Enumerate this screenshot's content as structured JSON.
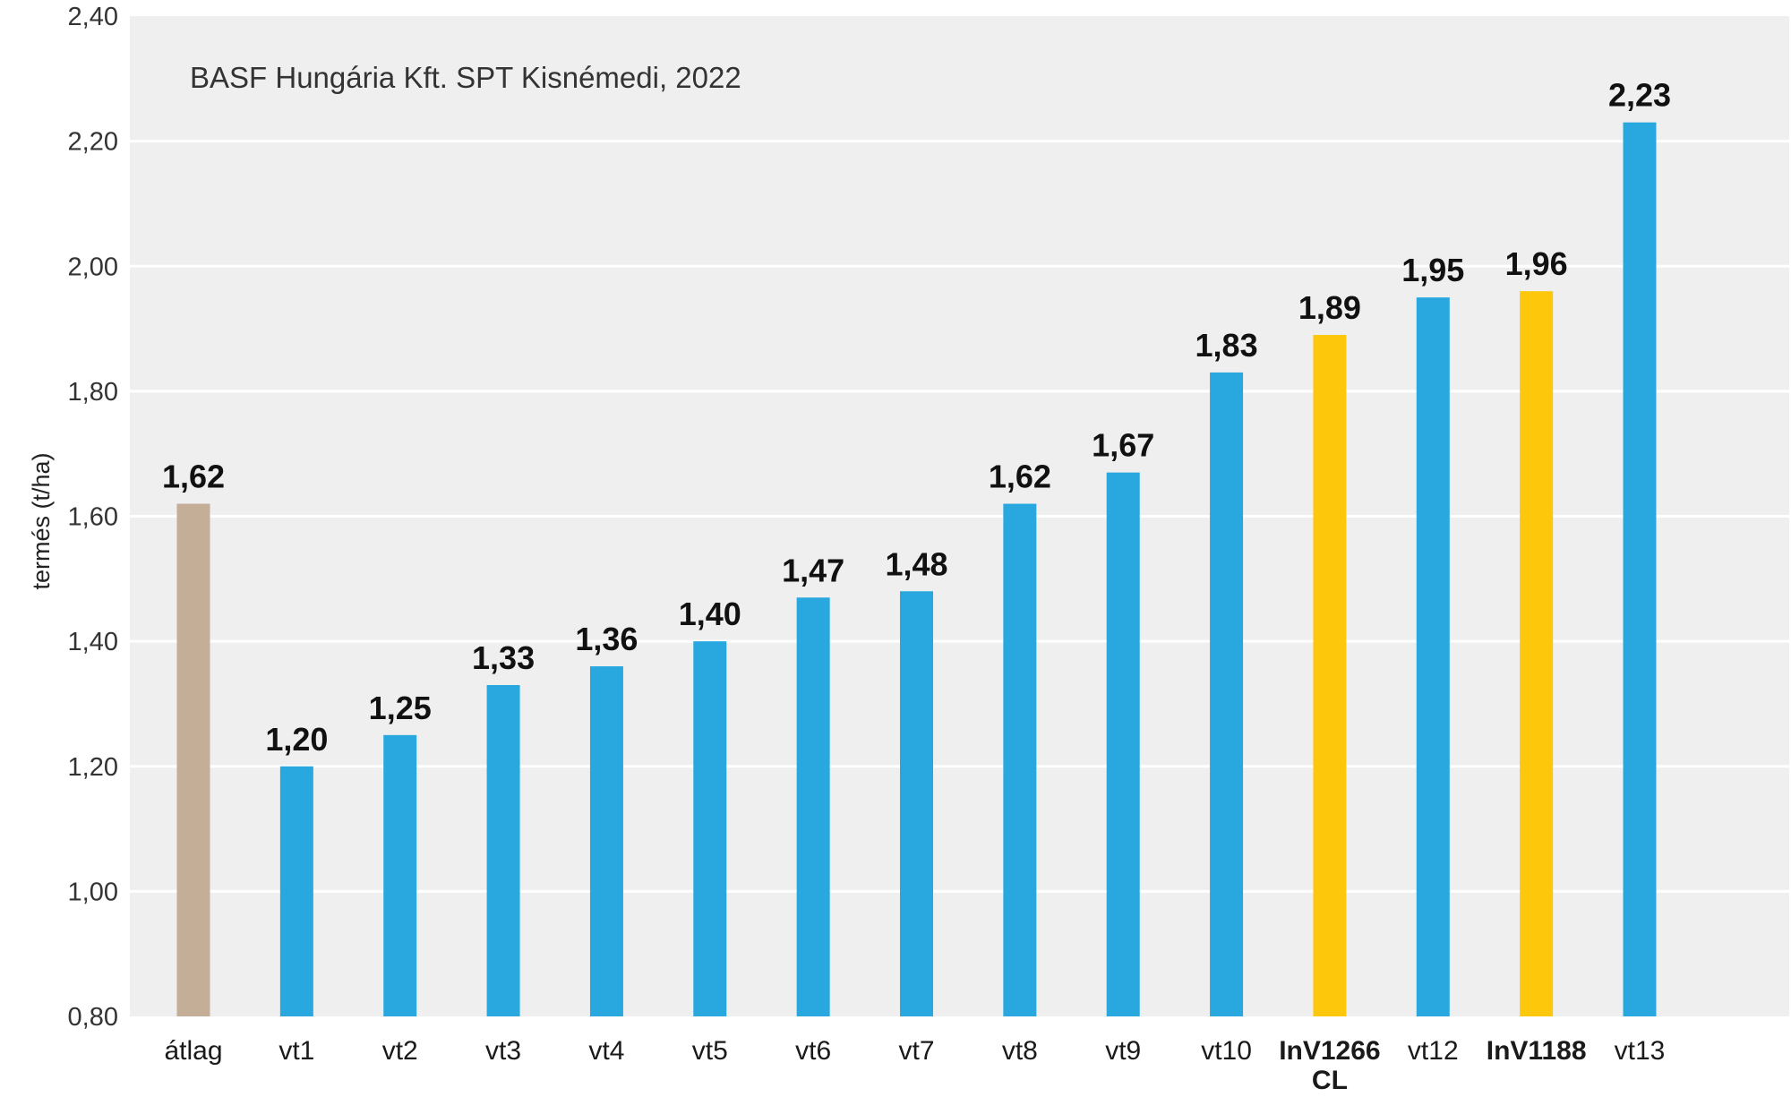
{
  "chart_data": {
    "type": "bar",
    "title": "",
    "subtitle": "BASF Hungária Kft. SPT Kisnémedi, 2022",
    "xlabel": "",
    "ylabel": "termés (t/ha)",
    "ylim": [
      0.8,
      2.4
    ],
    "yticks": [
      "0,80",
      "1,00",
      "1,20",
      "1,40",
      "1,60",
      "1,80",
      "2,00",
      "2,20",
      "2,40"
    ],
    "grid": true,
    "categories": [
      {
        "label": "átlag",
        "line2": "",
        "bold": false
      },
      {
        "label": "vt1",
        "line2": "",
        "bold": false
      },
      {
        "label": "vt2",
        "line2": "",
        "bold": false
      },
      {
        "label": "vt3",
        "line2": "",
        "bold": false
      },
      {
        "label": "vt4",
        "line2": "",
        "bold": false
      },
      {
        "label": "vt5",
        "line2": "",
        "bold": false
      },
      {
        "label": "vt6",
        "line2": "",
        "bold": false
      },
      {
        "label": "vt7",
        "line2": "",
        "bold": false
      },
      {
        "label": "vt8",
        "line2": "",
        "bold": false
      },
      {
        "label": "vt9",
        "line2": "",
        "bold": false
      },
      {
        "label": "vt10",
        "line2": "",
        "bold": false
      },
      {
        "label": "InV1266",
        "line2": "CL",
        "bold": true
      },
      {
        "label": "vt12",
        "line2": "",
        "bold": false
      },
      {
        "label": "InV1188",
        "line2": "",
        "bold": true
      },
      {
        "label": "vt13",
        "line2": "",
        "bold": false
      }
    ],
    "values": [
      1.62,
      1.2,
      1.25,
      1.33,
      1.36,
      1.4,
      1.47,
      1.48,
      1.62,
      1.67,
      1.83,
      1.89,
      1.95,
      1.96,
      2.23
    ],
    "value_labels": [
      "1,62",
      "1,20",
      "1,25",
      "1,33",
      "1,36",
      "1,40",
      "1,47",
      "1,48",
      "1,62",
      "1,67",
      "1,83",
      "1,89",
      "1,95",
      "1,96",
      "2,23"
    ],
    "bar_colors": [
      "#c5ae97",
      "#29a8e0",
      "#29a8e0",
      "#29a8e0",
      "#29a8e0",
      "#29a8e0",
      "#29a8e0",
      "#29a8e0",
      "#29a8e0",
      "#29a8e0",
      "#29a8e0",
      "#fdc70c",
      "#29a8e0",
      "#fdc70c",
      "#29a8e0"
    ],
    "colors": {
      "plot_background": "#efefef",
      "gridline": "#ffffff",
      "average": "#c5ae97",
      "competitor": "#29a8e0",
      "highlight": "#fdc70c"
    }
  }
}
